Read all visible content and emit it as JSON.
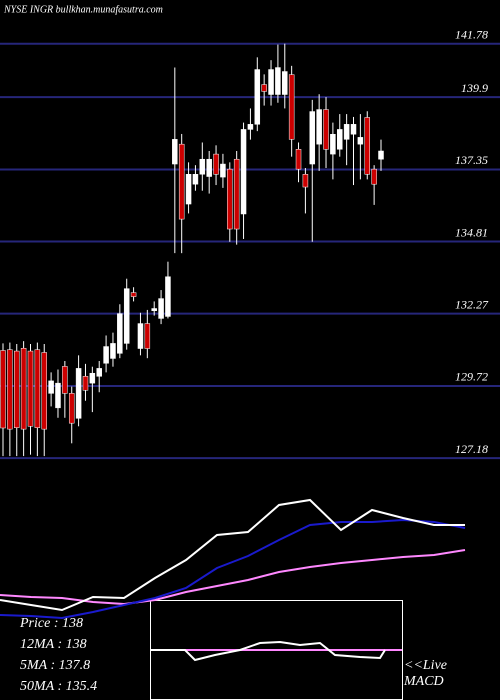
{
  "chart_data": [
    {
      "type": "candlestick",
      "title": "NYSE INGR bullkhan.munafasutra.com",
      "open": [
        130.97,
        131.0,
        130.95,
        131.05,
        130.95,
        131.0,
        130.9,
        129.46,
        128.95,
        130.41,
        129.46,
        128.58,
        130.06,
        129.82,
        130.06,
        130.52,
        130.69,
        130.87,
        131.22,
        133.01,
        131.04,
        131.92,
        132.37,
        132.1,
        132.17,
        137.54,
        138.24,
        136.13,
        136.83,
        137.18,
        137.1,
        137.89,
        137.08,
        137.36,
        137.71,
        135.78,
        138.76,
        138.94,
        140.34,
        139.99,
        139.99,
        139.99,
        140.69,
        138.06,
        137.18,
        137.54,
        138.24,
        139.46,
        137.89,
        138.06,
        138.41,
        138.59,
        138.24,
        139.18,
        137.36,
        137.71
      ],
      "high": [
        131.22,
        131.25,
        131.2,
        131.3,
        131.2,
        131.25,
        131.2,
        130.2,
        130.3,
        130.6,
        129.7,
        130.8,
        130.5,
        130.4,
        130.6,
        131.5,
        131.6,
        132.6,
        133.5,
        133.2,
        132.3,
        132.4,
        132.7,
        133.1,
        134.1,
        140.94,
        138.6,
        137.6,
        137.5,
        138.3,
        138.0,
        138.2,
        137.9,
        137.6,
        138.0,
        139.0,
        139.5,
        141.3,
        140.7,
        141.2,
        141.75,
        141.78,
        141.0,
        138.3,
        137.4,
        139.8,
        140.0,
        139.9,
        139.0,
        139.3,
        139.3,
        139.2,
        139.3,
        139.4,
        137.5,
        138.4
      ],
      "low": [
        127.25,
        127.25,
        127.25,
        127.25,
        127.3,
        127.25,
        127.25,
        129.0,
        128.6,
        128.6,
        127.7,
        128.3,
        129.2,
        128.8,
        129.5,
        130.2,
        130.4,
        130.7,
        131.0,
        132.7,
        130.8,
        130.7,
        132.2,
        131.9,
        132.1,
        134.4,
        134.4,
        135.8,
        136.6,
        136.6,
        136.5,
        136.8,
        136.7,
        134.8,
        134.7,
        134.9,
        138.4,
        138.7,
        139.6,
        139.6,
        139.7,
        139.5,
        137.8,
        136.9,
        135.8,
        134.8,
        137.3,
        137.4,
        137.0,
        137.8,
        137.5,
        136.8,
        137.0,
        137.0,
        136.1,
        137.3
      ],
      "close": [
        128.24,
        128.2,
        128.25,
        128.2,
        128.3,
        128.25,
        128.2,
        129.9,
        129.82,
        129.46,
        128.41,
        130.34,
        129.57,
        130.17,
        130.34,
        131.11,
        131.22,
        132.27,
        133.15,
        132.87,
        131.92,
        131.04,
        132.45,
        132.8,
        133.57,
        138.41,
        135.6,
        137.18,
        137.18,
        137.71,
        137.71,
        137.18,
        137.54,
        135.25,
        135.25,
        138.76,
        138.94,
        140.87,
        140.1,
        140.87,
        140.94,
        140.8,
        138.41,
        137.36,
        136.73,
        139.39,
        139.46,
        138.06,
        138.59,
        138.76,
        138.94,
        138.94,
        138.48,
        137.18,
        136.83,
        138.0
      ],
      "up_color": "#ffffff",
      "down_color": "#cc0000",
      "ylim": [
        126.76,
        143.32
      ],
      "yticks": [
        141.78,
        139.9,
        137.35,
        134.81,
        132.27,
        129.72,
        127.18
      ],
      "grid": true,
      "grid_color": "#26267a"
    },
    {
      "type": "line",
      "annotations": [
        "Price   : 138",
        "12MA : 138",
        "5MA : 137.8",
        "50MA : 135.4"
      ],
      "x": [
        0,
        1,
        2,
        3,
        4,
        5,
        6,
        7,
        8,
        9,
        10,
        11,
        12,
        13,
        14,
        15
      ],
      "xlim": [
        0,
        15
      ],
      "ylim": [
        0,
        13
      ],
      "series": [
        {
          "color": "#ff88ff",
          "values": [
            2.5,
            2.3,
            2.2,
            1.8,
            1.6,
            2,
            2.8,
            3.4,
            4,
            4.8,
            5.3,
            5.7,
            6,
            6.3,
            6.5,
            7
          ]
        },
        {
          "color": "#1a1acc",
          "values": [
            0.5,
            0.4,
            0.2,
            0.8,
            1.5,
            2.2,
            3.2,
            5.2,
            6.4,
            8,
            9.5,
            9.8,
            9.8,
            10,
            9.8,
            9.2
          ]
        },
        {
          "color": "#ffffff",
          "values": [
            2,
            1.5,
            1,
            2.3,
            2.2,
            4.2,
            6,
            8.5,
            8.8,
            11.5,
            12,
            9,
            11,
            10.2,
            9.5,
            9.5
          ]
        }
      ]
    },
    {
      "type": "line",
      "annotations": [
        "<<Live",
        "MACD"
      ],
      "xlim": [
        0,
        252
      ],
      "ylim": [
        -5,
        5
      ],
      "series": [
        {
          "color": "#ff88ff",
          "x": [
            0,
            252
          ],
          "values": [
            0,
            0
          ]
        },
        {
          "color": "#ffffff",
          "x": [
            0,
            35,
            45,
            65,
            90,
            110,
            130,
            150,
            170,
            185,
            210,
            230,
            235
          ],
          "values": [
            0,
            0,
            -1,
            -0.5,
            0,
            0.7,
            0.8,
            0.5,
            0.7,
            -0.5,
            -0.7,
            -0.8,
            0
          ]
        }
      ]
    }
  ]
}
